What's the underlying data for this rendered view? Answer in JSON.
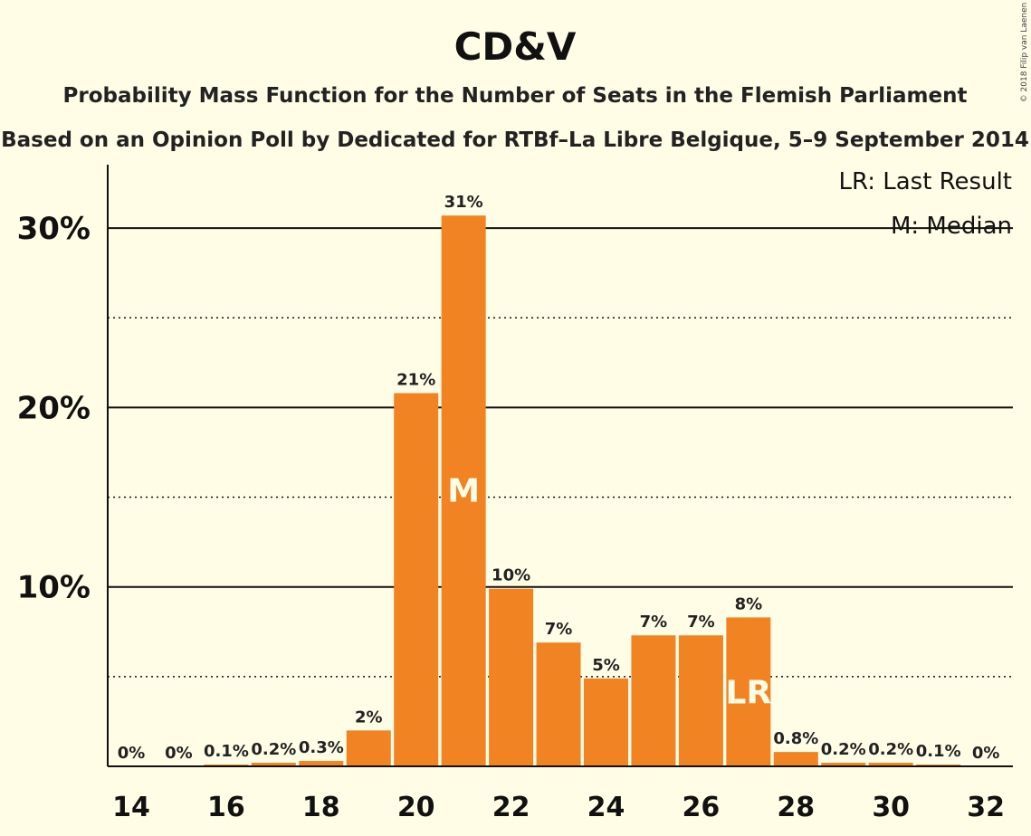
{
  "chart_data": {
    "type": "bar",
    "title": "CD&V",
    "subtitle_1": "Probability Mass Function for the Number of Seats in the Flemish Parliament",
    "subtitle_2": "Based on an Opinion Poll by Dedicated for RTBf–La Libre Belgique, 5–9 September 2014",
    "credit": "© 2018 Filip van Laenen",
    "x": [
      14,
      15,
      16,
      17,
      18,
      19,
      20,
      21,
      22,
      23,
      24,
      25,
      26,
      27,
      28,
      29,
      30,
      31,
      32
    ],
    "values": [
      0,
      0,
      0.1,
      0.2,
      0.3,
      2.0,
      20.8,
      30.7,
      9.9,
      6.9,
      4.9,
      7.3,
      7.3,
      8.3,
      0.8,
      0.2,
      0.2,
      0.1,
      0
    ],
    "value_labels": [
      "0%",
      "0%",
      "0.1%",
      "0.2%",
      "0.3%",
      "2%",
      "21%",
      "31%",
      "10%",
      "7%",
      "5%",
      "7%",
      "7%",
      "8%",
      "0.8%",
      "0.2%",
      "0.2%",
      "0.1%",
      "0%"
    ],
    "xtick_labels": [
      "14",
      "16",
      "18",
      "20",
      "22",
      "24",
      "26",
      "28",
      "30",
      "32"
    ],
    "ytick_labels": [
      "10%",
      "20%",
      "30%"
    ],
    "yticks": [
      10,
      20,
      30
    ],
    "ylim": [
      0,
      33.5
    ],
    "median_seat": 21,
    "median_marker": "M",
    "last_result_seat": 27,
    "last_result_marker": "LR",
    "legend": [
      "LR: Last Result",
      "M: Median"
    ],
    "bar_color": "#F28322",
    "background_color": "#FFFDE6",
    "grid": "solid lines at major ticks, dotted lines at 5% intervals",
    "legend_position": "top-right"
  }
}
